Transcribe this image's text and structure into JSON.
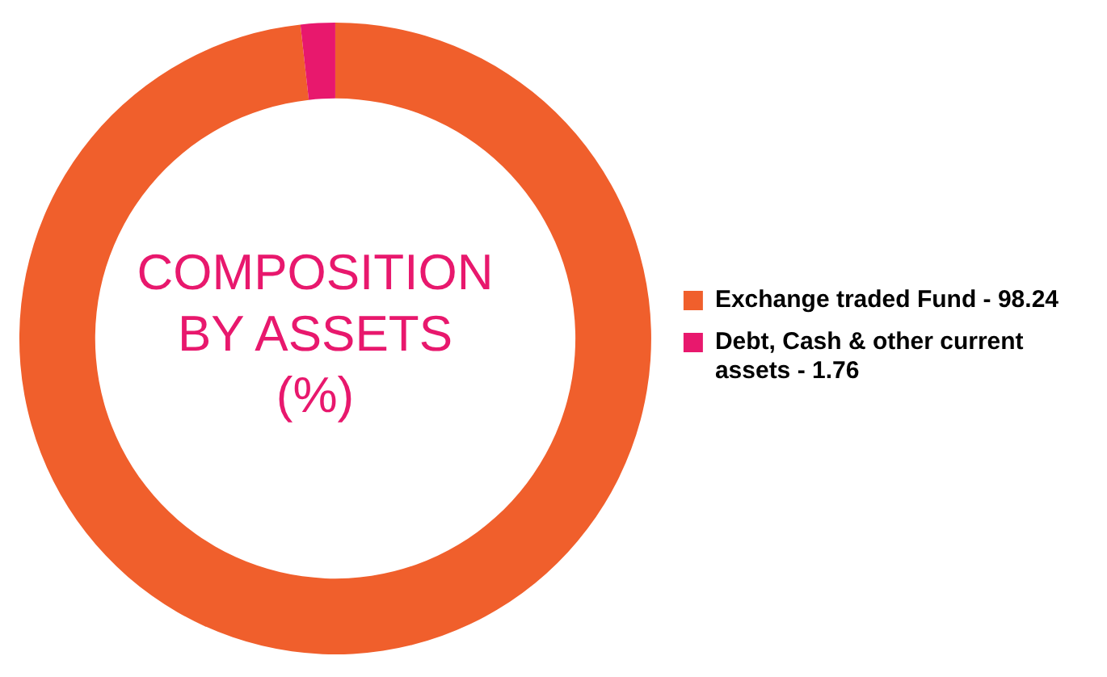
{
  "chart_data": {
    "type": "donut",
    "title": "COMPOSITION\nBY ASSETS\n(%)",
    "categories": [
      "Exchange traded Fund - 98.24",
      "Debt, Cash & other current assets - 1.76"
    ],
    "values": [
      98.24,
      1.76
    ],
    "colors": [
      "#f05f2c",
      "#e8186d"
    ],
    "legend": "right"
  }
}
